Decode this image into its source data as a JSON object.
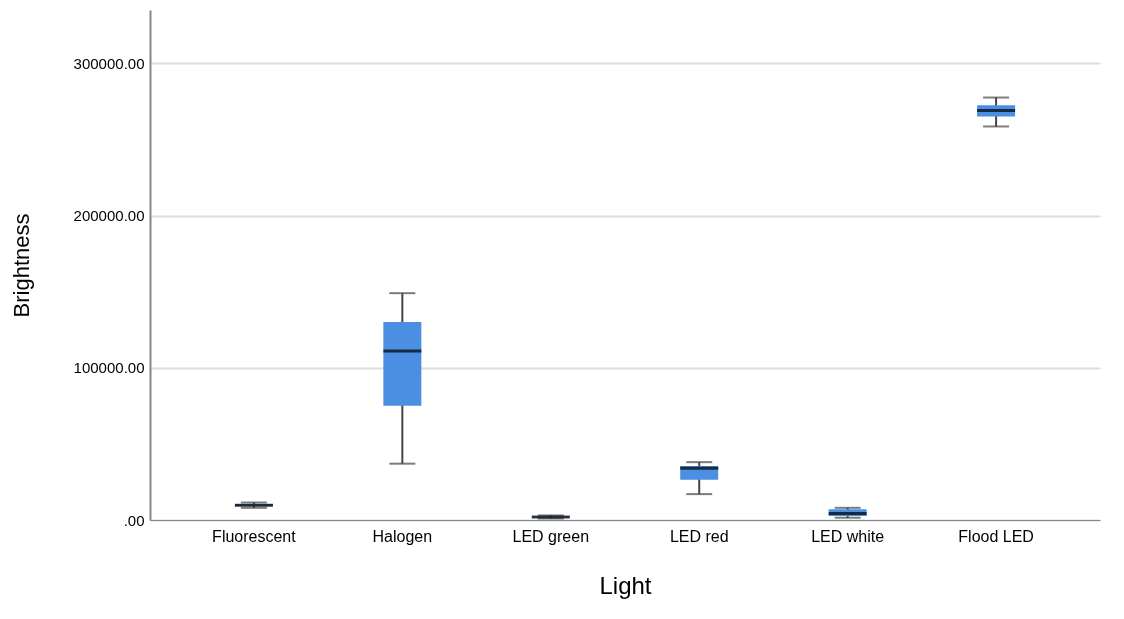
{
  "chart_data": {
    "type": "box",
    "xlabel": "Light",
    "ylabel": "Brightness",
    "categories": [
      "Fluorescent",
      "Halogen",
      "LED green",
      "LED red",
      "LED white",
      "Flood LED"
    ],
    "color": "#4a8fe2",
    "boxes": [
      {
        "low": 8000,
        "q1": 9000,
        "median": 9700,
        "q3": 10500,
        "high": 11500
      },
      {
        "low": 37000,
        "q1": 75000,
        "median": 111000,
        "q3": 130000,
        "high": 149000
      },
      {
        "low": 1000,
        "q1": 1500,
        "median": 2000,
        "q3": 2500,
        "high": 3000
      },
      {
        "low": 17000,
        "q1": 26500,
        "median": 34000,
        "q3": 35500,
        "high": 38000
      },
      {
        "low": 1500,
        "q1": 2600,
        "median": 4300,
        "q3": 7000,
        "high": 8000
      },
      {
        "low": 258500,
        "q1": 265000,
        "median": 269000,
        "q3": 272500,
        "high": 277500
      }
    ],
    "ylim": [
      0,
      335000
    ],
    "yticks": [
      {
        "value": 0,
        "label": ".00"
      },
      {
        "value": 100000,
        "label": "100000.00"
      },
      {
        "value": 200000,
        "label": "200000.00"
      },
      {
        "value": 300000,
        "label": "300000.00"
      }
    ],
    "grid": "y"
  }
}
